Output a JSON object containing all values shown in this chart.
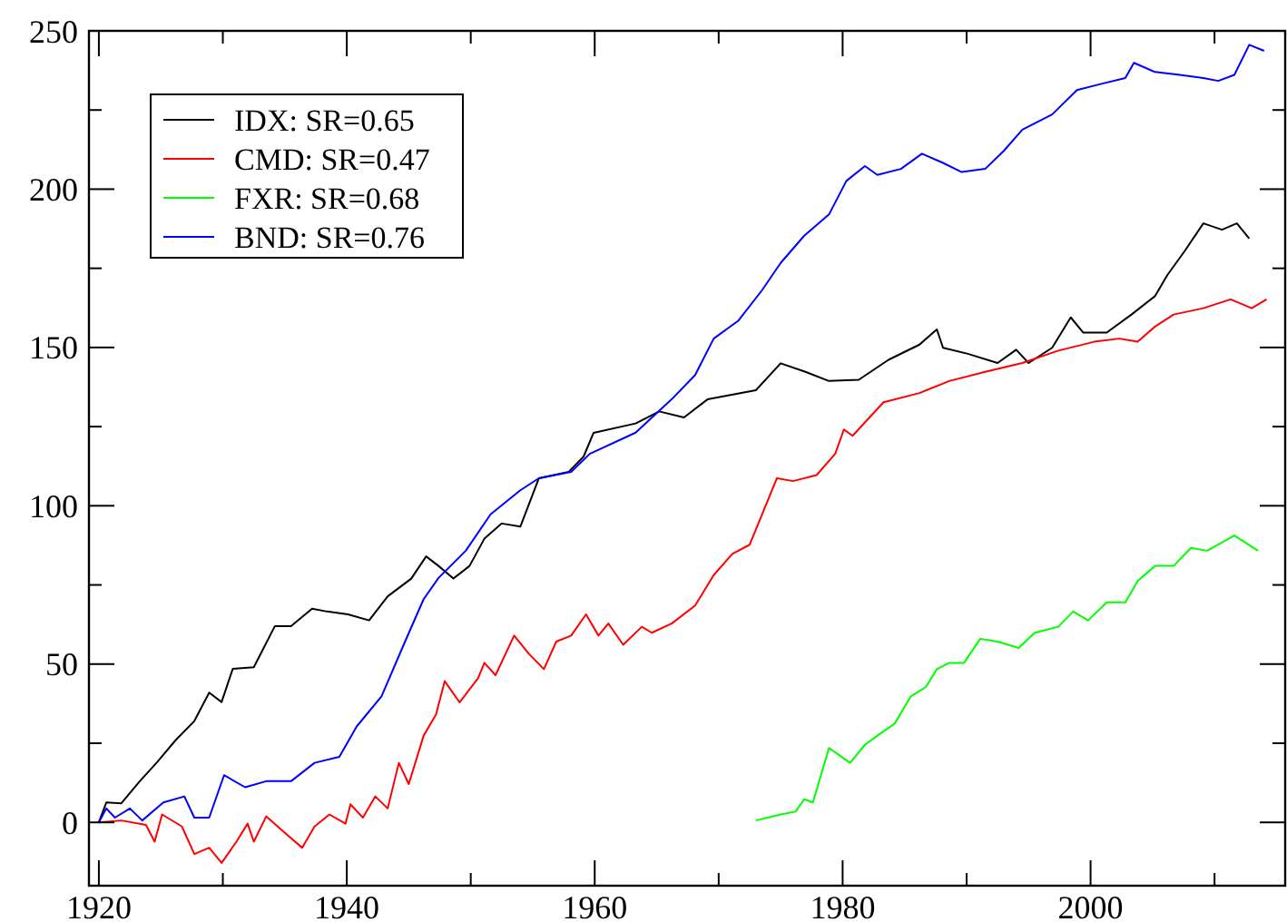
{
  "chart_data": {
    "type": "line",
    "xlim": [
      1919.2,
      2015.7
    ],
    "ylim": [
      -20,
      250
    ],
    "xticks": [
      1920,
      {
        "value": 1930,
        "label": null
      },
      1940,
      {
        "value": 1950,
        "label": null
      },
      1960,
      {
        "value": 1970,
        "label": null
      },
      1980,
      {
        "value": 1990,
        "label": null
      },
      2000,
      {
        "value": 2010,
        "label": null
      }
    ],
    "yticks": [
      0,
      {
        "value": 25,
        "label": null
      },
      50,
      {
        "value": 75,
        "label": null
      },
      100,
      {
        "value": 125,
        "label": null
      },
      150,
      {
        "value": 175,
        "label": null
      },
      200,
      {
        "value": 225,
        "label": null
      },
      250
    ],
    "grid": false,
    "legend": "top left",
    "marker": "none",
    "line_style": "solid",
    "series": [
      {
        "name": "IDX: SR=0.65",
        "color": "#000000",
        "x": [
          1920,
          1920.6,
          1921.8,
          1923.3,
          1924.7,
          1926.2,
          1927.7,
          1928.9,
          1929.9,
          1930.8,
          1932.5,
          1934.2,
          1935.5,
          1937.2,
          1938.4,
          1940.1,
          1941.8,
          1943.3,
          1945.2,
          1946.4,
          1947.4,
          1948.6,
          1949.9,
          1951.1,
          1952.5,
          1954,
          1955.5,
          1957.9,
          1959.1,
          1959.9,
          1963.3,
          1965.2,
          1967.2,
          1969.1,
          1973,
          1975,
          1977,
          1978.9,
          1981.3,
          1983.7,
          1986.2,
          1987.6,
          1988.1,
          1990.1,
          1992.5,
          1994,
          1995,
          1996.9,
          1998.4,
          1999.4,
          2001.3,
          2003.3,
          2005.2,
          2006.2,
          2007.6,
          2009.1,
          2010.6,
          2011.8,
          2012.8
        ],
        "values": [
          0,
          6.3,
          6,
          13,
          19,
          26,
          32,
          41,
          38,
          48.5,
          49,
          62,
          62,
          67.5,
          66.6,
          65.7,
          63.8,
          71.4,
          77,
          84,
          81,
          77,
          81,
          89.6,
          94.4,
          93.4,
          108.7,
          110.7,
          115.5,
          123,
          126,
          129.8,
          127.9,
          133.6,
          136.5,
          145,
          142.3,
          139.4,
          139.8,
          146.1,
          150.9,
          155.7,
          149.9,
          148,
          145.1,
          149.3,
          145.1,
          149.9,
          159.5,
          154.7,
          154.7,
          160.4,
          166.2,
          172.9,
          180.5,
          189.2,
          187.2,
          189.2,
          184.4
        ]
      },
      {
        "name": "CMD: SR=0.47",
        "color": "#ff0000",
        "x": [
          1920,
          1921.8,
          1923.8,
          1924.5,
          1925.1,
          1926.7,
          1927.7,
          1928.9,
          1929.9,
          1931.1,
          1932,
          1932.5,
          1933.5,
          1935,
          1936.4,
          1937.4,
          1938.6,
          1939.9,
          1940.3,
          1941.3,
          1942.3,
          1943.3,
          1944.2,
          1945,
          1946.2,
          1947.2,
          1947.9,
          1949.1,
          1950.6,
          1951.1,
          1952,
          1953.5,
          1954.7,
          1955.9,
          1956.9,
          1958.1,
          1959.3,
          1960.3,
          1961.1,
          1962.3,
          1963.8,
          1964.6,
          1966.2,
          1968.1,
          1969.6,
          1971.1,
          1972.5,
          1973.5,
          1974.7,
          1976,
          1977.9,
          1979.4,
          1980.1,
          1980.8,
          1983.3,
          1986.2,
          1988.6,
          1991.5,
          1994.5,
          1997.4,
          2000.3,
          2002.3,
          2003.8,
          2005.2,
          2006.7,
          2009.1,
          2011.3,
          2013,
          2014.2
        ],
        "values": [
          0,
          0.6,
          -0.8,
          -6.1,
          2.5,
          -1.3,
          -10,
          -8,
          -12.8,
          -6.1,
          -0.4,
          -6.1,
          1.9,
          -3.3,
          -8,
          -1.3,
          2.5,
          -0.4,
          5.7,
          1.5,
          8.2,
          4.4,
          18.8,
          12.1,
          27.4,
          34.1,
          44.6,
          37.9,
          45.6,
          50.4,
          46.5,
          59,
          53.2,
          48.4,
          57.1,
          59,
          65.7,
          59,
          62.8,
          56.1,
          61.8,
          59.9,
          62.8,
          68.5,
          78.1,
          84.8,
          87.7,
          97.3,
          108.7,
          107.8,
          109.7,
          116.4,
          124.1,
          122.1,
          132.7,
          135.6,
          139.4,
          142.3,
          145.1,
          149,
          151.8,
          152.8,
          151.8,
          156.6,
          160.4,
          162.4,
          165.2,
          162.4,
          165.2
        ]
      },
      {
        "name": "FXR: SR=0.68",
        "color": "#00ff00",
        "x": [
          1973,
          1975,
          1976.2,
          1976.9,
          1977.6,
          1978.9,
          1980.6,
          1981.8,
          1982.8,
          1984.2,
          1985.5,
          1986.7,
          1987.6,
          1988.6,
          1989.8,
          1991.1,
          1992.5,
          1994.2,
          1995.5,
          1997.4,
          1998.6,
          1999.8,
          2001.3,
          2002.8,
          2003.8,
          2005.2,
          2006.7,
          2008.1,
          2009.4,
          2011.6,
          2013.5
        ],
        "values": [
          0.6,
          2.5,
          3.4,
          7.3,
          6.3,
          23.5,
          18.8,
          24.5,
          27.4,
          31.2,
          39.8,
          42.7,
          48.4,
          50.4,
          50.4,
          58,
          57.1,
          55.1,
          59.9,
          61.8,
          66.6,
          63.8,
          69.5,
          69.5,
          76.2,
          81,
          81,
          86.7,
          85.8,
          90.6,
          85.8
        ]
      },
      {
        "name": "BND: SR=0.76",
        "color": "#0000ff",
        "x": [
          1920,
          1920.6,
          1921.3,
          1922.5,
          1923.5,
          1925.2,
          1926.9,
          1927.7,
          1928.9,
          1930.1,
          1931.8,
          1933.5,
          1935.5,
          1937.4,
          1939.4,
          1940.8,
          1942.8,
          1944.7,
          1946.2,
          1947.4,
          1949.6,
          1951.6,
          1954,
          1955.5,
          1958.1,
          1959.6,
          1963.3,
          1966.2,
          1968.1,
          1969.6,
          1971.6,
          1973.5,
          1975,
          1976.9,
          1978.9,
          1980.3,
          1981.8,
          1982.8,
          1984.7,
          1986.4,
          1988.1,
          1989.6,
          1991.5,
          1993,
          1994.5,
          1996.9,
          1998.9,
          2000.8,
          2002.8,
          2003.5,
          2005.2,
          2007.2,
          2009.1,
          2010.3,
          2011.6,
          2012.8,
          2014
        ],
        "values": [
          0,
          4.4,
          1.5,
          4.4,
          0.6,
          6.3,
          8.2,
          1.5,
          1.5,
          14.9,
          11.1,
          13,
          13,
          18.8,
          20.7,
          30.3,
          39.8,
          57.1,
          70.5,
          77.2,
          85.8,
          97.3,
          104.9,
          108.7,
          110.7,
          116.4,
          123.1,
          133.6,
          141.3,
          152.8,
          158.5,
          168.1,
          176.7,
          185.3,
          192,
          202.6,
          207.3,
          204.5,
          206.4,
          211.2,
          208.3,
          205.4,
          206.4,
          212.1,
          218.8,
          223.6,
          231.3,
          233.2,
          235.1,
          239.9,
          237,
          236.1,
          235.1,
          234.2,
          236.1,
          245.6,
          243.7
        ]
      }
    ]
  }
}
